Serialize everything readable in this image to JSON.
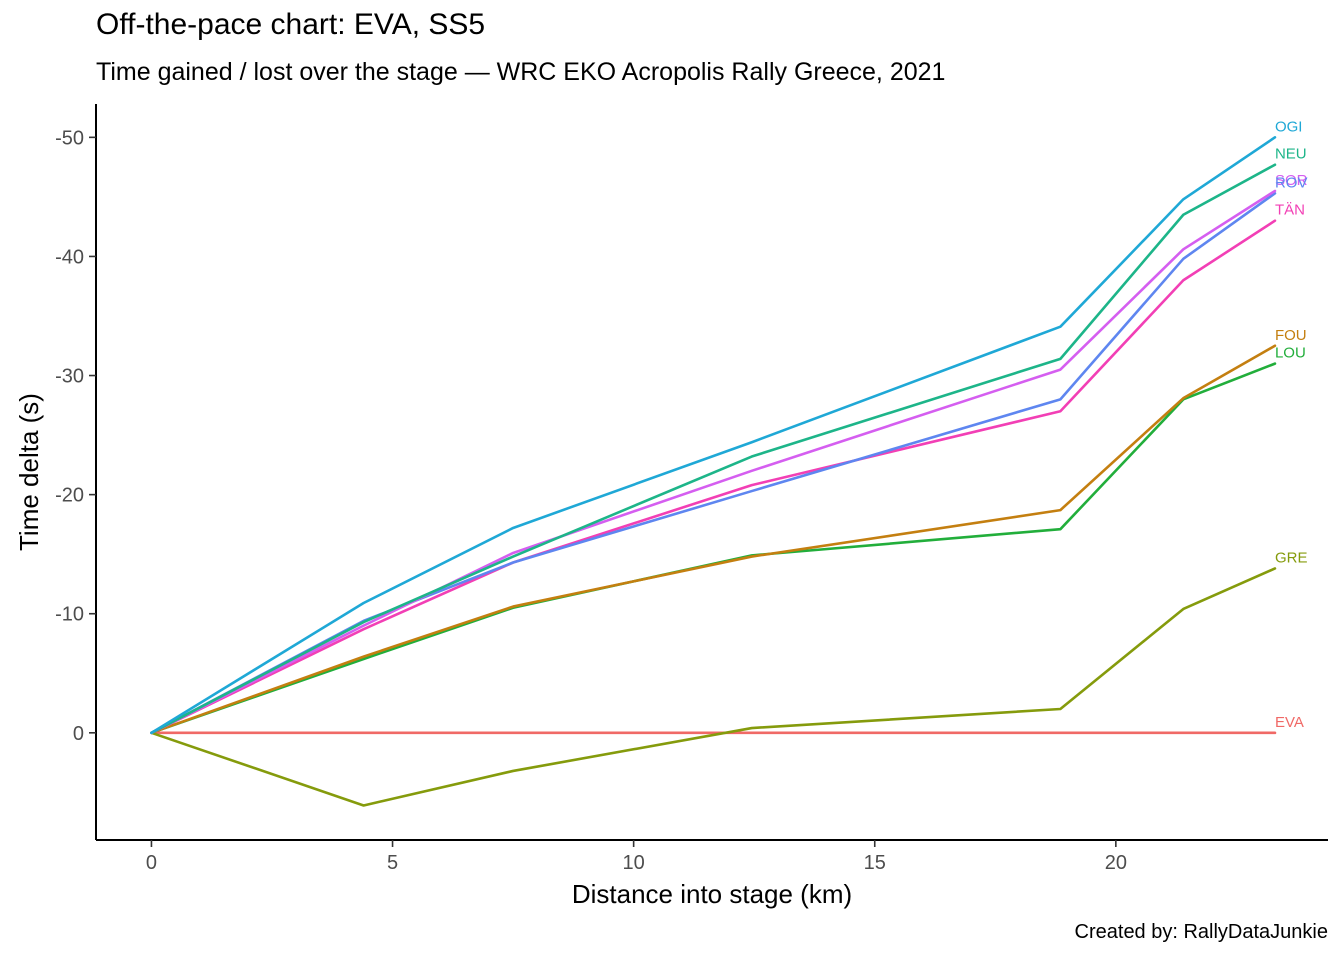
{
  "chart_data": {
    "type": "line",
    "title": "Off-the-pace chart: EVA, SS5",
    "subtitle": "Time gained / lost over the stage — WRC EKO Acropolis Rally Greece, 2021",
    "caption": "Created by: RallyDataJunkie",
    "xlabel": "Distance into stage (km)",
    "ylabel": "Time delta (s)",
    "xlim": [
      -1.15,
      24.4
    ],
    "ylim": [
      9,
      -52.8
    ],
    "y_reversed": true,
    "x_ticks": [
      0,
      5,
      10,
      15,
      20
    ],
    "x_tick_labels": [
      "0",
      "5",
      "10",
      "15",
      "20"
    ],
    "y_ticks": [
      0,
      -10,
      -20,
      -30,
      -40,
      -50
    ],
    "y_tick_labels": [
      "0",
      "-10",
      "-20",
      "-30",
      "-40",
      "-50"
    ],
    "grid": false,
    "legend": "none (direct labels at line ends)",
    "x": [
      0,
      4.4,
      7.5,
      12.45,
      18.85,
      21.4,
      23.3
    ],
    "series": [
      {
        "name": "OGI",
        "color": "#1FA8D6",
        "values": [
          0,
          -10.9,
          -17.2,
          -24.4,
          -34.1,
          -44.8,
          -50.0
        ]
      },
      {
        "name": "NEU",
        "color": "#1DB589",
        "values": [
          0,
          -9.3,
          -14.8,
          -23.2,
          -31.4,
          -43.5,
          -47.7
        ]
      },
      {
        "name": "SOR",
        "color": "#D55EF0",
        "values": [
          0,
          -9.0,
          -15.1,
          -22.0,
          -30.5,
          -40.6,
          -45.5
        ]
      },
      {
        "name": "ROV",
        "color": "#5E86F0",
        "values": [
          0,
          -9.4,
          -14.3,
          -20.3,
          -28.0,
          -39.8,
          -45.3
        ]
      },
      {
        "name": "TÄN",
        "color": "#F23FB5",
        "values": [
          0,
          -8.7,
          -14.3,
          -20.8,
          -27.0,
          -38.0,
          -43.0
        ]
      },
      {
        "name": "FOU",
        "color": "#C47F10",
        "values": [
          0,
          -6.4,
          -10.6,
          -14.8,
          -18.7,
          -28.1,
          -32.5
        ]
      },
      {
        "name": "LOU",
        "color": "#22AE3B",
        "values": [
          0,
          -6.2,
          -10.5,
          -14.9,
          -17.1,
          -28.0,
          -31.0
        ]
      },
      {
        "name": "GRE",
        "color": "#859B0C",
        "values": [
          0,
          6.1,
          3.2,
          -0.4,
          -2.0,
          -10.4,
          -13.8
        ]
      },
      {
        "name": "EVA",
        "color": "#F06966",
        "values": [
          0,
          0,
          0,
          0,
          0,
          0,
          0
        ]
      }
    ]
  }
}
